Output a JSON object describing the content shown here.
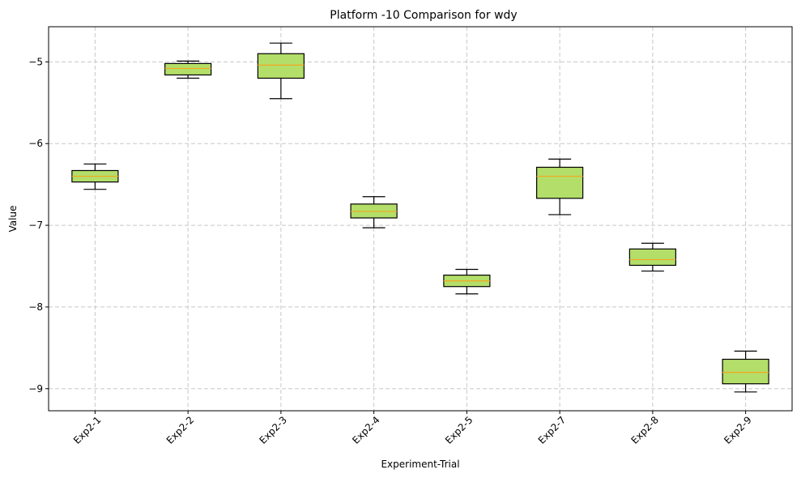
{
  "chart_data": {
    "type": "box",
    "title": "Platform -10 Comparison for wdy",
    "xlabel": "Experiment-Trial",
    "ylabel": "Value",
    "ylim": [
      -9.27,
      -4.57
    ],
    "yticks": [
      -9,
      -8,
      -7,
      -6,
      -5
    ],
    "ytick_labels": [
      "−9",
      "−8",
      "−7",
      "−6",
      "−5"
    ],
    "grid": true,
    "colors": {
      "box_fill": "#b3de69",
      "median": "#f5a623",
      "edge": "#000000",
      "grid": "#c8c8c8"
    },
    "categories": [
      "Exp2-1",
      "Exp2-2",
      "Exp2-3",
      "Exp2-4",
      "Exp2-5",
      "Exp2-7",
      "Exp2-8",
      "Exp2-9"
    ],
    "boxes": [
      {
        "label": "Exp2-1",
        "whislo": -6.56,
        "q1": -6.47,
        "med": -6.4,
        "q3": -6.33,
        "whishi": -6.25
      },
      {
        "label": "Exp2-2",
        "whislo": -5.2,
        "q1": -5.16,
        "med": -5.08,
        "q3": -5.02,
        "whishi": -4.99
      },
      {
        "label": "Exp2-3",
        "whislo": -5.45,
        "q1": -5.2,
        "med": -5.04,
        "q3": -4.9,
        "whishi": -4.77
      },
      {
        "label": "Exp2-4",
        "whislo": -7.03,
        "q1": -6.91,
        "med": -6.83,
        "q3": -6.74,
        "whishi": -6.65
      },
      {
        "label": "Exp2-5",
        "whislo": -7.84,
        "q1": -7.75,
        "med": -7.68,
        "q3": -7.61,
        "whishi": -7.54
      },
      {
        "label": "Exp2-7",
        "whislo": -6.87,
        "q1": -6.67,
        "med": -6.4,
        "q3": -6.29,
        "whishi": -6.19
      },
      {
        "label": "Exp2-8",
        "whislo": -7.56,
        "q1": -7.49,
        "med": -7.42,
        "q3": -7.29,
        "whishi": -7.22
      },
      {
        "label": "Exp2-9",
        "whislo": -9.04,
        "q1": -8.94,
        "med": -8.8,
        "q3": -8.64,
        "whishi": -8.54
      }
    ]
  }
}
